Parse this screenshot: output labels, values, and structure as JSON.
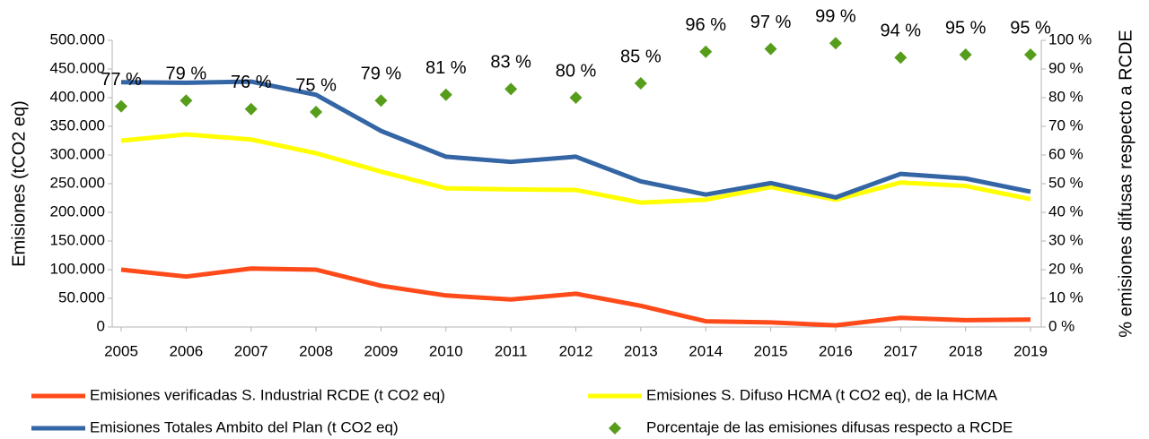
{
  "chart_data": {
    "type": "line",
    "ylabel": "Emisiones (tCO2 eq)",
    "y2label": "% emisiones difusas respecto a RCDE",
    "categories": [
      "2005",
      "2006",
      "2007",
      "2008",
      "2009",
      "2010",
      "2011",
      "2012",
      "2013",
      "2014",
      "2015",
      "2016",
      "2017",
      "2018",
      "2019"
    ],
    "series": [
      {
        "name": "Emisiones verificadas S. Industrial RCDE (t CO2 eq)",
        "color": "#ff4a1a",
        "values": [
          100000,
          88000,
          102000,
          100000,
          72000,
          55000,
          48000,
          58000,
          37000,
          10000,
          8000,
          3000,
          16000,
          12000,
          13000
        ]
      },
      {
        "name": "Emisiones S. Difuso HCMA  (t CO2 eq), de la  HCMA",
        "color": "#ffff00",
        "values": [
          325000,
          336000,
          327000,
          303000,
          271000,
          242000,
          240000,
          239000,
          217000,
          222000,
          244000,
          222000,
          252000,
          246000,
          223000
        ]
      },
      {
        "name": "Emisiones Totales Ambito del Plan (t CO2 eq)",
        "color": "#3465a4",
        "values": [
          427000,
          426000,
          428000,
          405000,
          342000,
          297000,
          288000,
          297000,
          254000,
          231000,
          251000,
          226000,
          267000,
          259000,
          236000
        ]
      },
      {
        "name": "Porcentaje de las emisiones difusas respecto a RCDE",
        "color": "#579d1c",
        "type": "scatter",
        "axis": "y2",
        "values": [
          77,
          79,
          76,
          75,
          79,
          81,
          83,
          80,
          85,
          96,
          97,
          99,
          94,
          95,
          95
        ],
        "value_labels": [
          "77 %",
          "79 %",
          "76 %",
          "75 %",
          "79 %",
          "81 %",
          "83 %",
          "80 %",
          "85 %",
          "96 %",
          "97 %",
          "99 %",
          "94 %",
          "95 %",
          "95 %"
        ]
      }
    ],
    "ylim": [
      0,
      500000
    ],
    "yticks": [
      {
        "value": 0,
        "label": "0"
      },
      {
        "value": 50000,
        "label": "50.000"
      },
      {
        "value": 100000,
        "label": "100.000"
      },
      {
        "value": 150000,
        "label": "150.000"
      },
      {
        "value": 200000,
        "label": "200.000"
      },
      {
        "value": 250000,
        "label": "250.000"
      },
      {
        "value": 300000,
        "label": "300.000"
      },
      {
        "value": 350000,
        "label": "350.000"
      },
      {
        "value": 400000,
        "label": "400.000"
      },
      {
        "value": 450000,
        "label": "450.000"
      },
      {
        "value": 500000,
        "label": "500.000"
      }
    ],
    "y2lim": [
      0,
      100
    ],
    "y2ticks": [
      {
        "value": 0,
        "label": "0 %"
      },
      {
        "value": 10,
        "label": "10 %"
      },
      {
        "value": 20,
        "label": "20 %"
      },
      {
        "value": 30,
        "label": "30 %"
      },
      {
        "value": 40,
        "label": "40 %"
      },
      {
        "value": 50,
        "label": "50 %"
      },
      {
        "value": 60,
        "label": "60 %"
      },
      {
        "value": 70,
        "label": "70 %"
      },
      {
        "value": 80,
        "label": "80 %"
      },
      {
        "value": 90,
        "label": "90 %"
      },
      {
        "value": 100,
        "label": "100 %"
      }
    ]
  }
}
